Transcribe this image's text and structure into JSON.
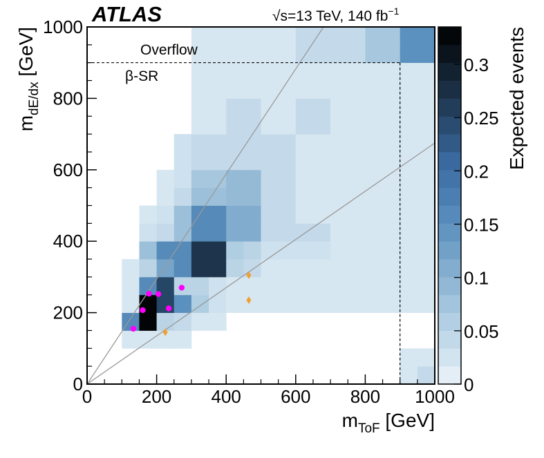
{
  "chart_data": {
    "type": "heatmap",
    "experiment_label": "ATLAS",
    "energy_label": "√s=13 TeV, 140 fb",
    "energy_label_exponent": "−1",
    "xlabel": "m",
    "xlabel_sub": "ToF",
    "xlabel_unit": " [GeV]",
    "ylabel": "m",
    "ylabel_sub": "dE/dx",
    "ylabel_unit": " [GeV]",
    "colorbar_label": "Expected events",
    "xlim": [
      0,
      1000
    ],
    "ylim": [
      0,
      1000
    ],
    "x_ticks": [
      0,
      200,
      400,
      600,
      800,
      1000
    ],
    "y_ticks": [
      0,
      200,
      400,
      600,
      800,
      1000
    ],
    "zlim": [
      0,
      0.335
    ],
    "colorbar_ticks": [
      0,
      0.05,
      0.1,
      0.15,
      0.2,
      0.25,
      0.3
    ],
    "bin_width": 50,
    "overflow_label": "Overflow",
    "region_label": "β-SR",
    "dashed_boundary": {
      "x": 900,
      "y": 900
    },
    "diagonal_lines": [
      {
        "x0": 0,
        "y0": 0,
        "x1": 680,
        "y1": 1000
      },
      {
        "x0": 0,
        "y0": 0,
        "x1": 1000,
        "y1": 675
      }
    ],
    "bins": [
      [
        100,
        100,
        0.02
      ],
      [
        150,
        100,
        0.02
      ],
      [
        200,
        100,
        0.02
      ],
      [
        250,
        100,
        0.02
      ],
      [
        100,
        150,
        0.16
      ],
      [
        150,
        150,
        0.33
      ],
      [
        200,
        150,
        0.05
      ],
      [
        250,
        150,
        0.04
      ],
      [
        300,
        150,
        0.02
      ],
      [
        350,
        150,
        0.02
      ],
      [
        100,
        200,
        0.02
      ],
      [
        150,
        200,
        0.33
      ],
      [
        200,
        200,
        0.25
      ],
      [
        250,
        200,
        0.15
      ],
      [
        300,
        200,
        0.06
      ],
      [
        350,
        200,
        0.03
      ],
      [
        400,
        200,
        0.02
      ],
      [
        450,
        200,
        0.02
      ],
      [
        500,
        200,
        0.02
      ],
      [
        550,
        200,
        0.02
      ],
      [
        600,
        200,
        0.02
      ],
      [
        650,
        200,
        0.02
      ],
      [
        700,
        200,
        0.02
      ],
      [
        750,
        200,
        0.02
      ],
      [
        800,
        200,
        0.02
      ],
      [
        850,
        200,
        0.02
      ],
      [
        900,
        200,
        0.02
      ],
      [
        950,
        200,
        0.02
      ],
      [
        100,
        250,
        0.02
      ],
      [
        150,
        250,
        0.16
      ],
      [
        200,
        250,
        0.25
      ],
      [
        250,
        250,
        0.05
      ],
      [
        300,
        250,
        0.05
      ],
      [
        350,
        250,
        0.03
      ],
      [
        400,
        250,
        0.02
      ],
      [
        450,
        250,
        0.02
      ],
      [
        500,
        250,
        0.02
      ],
      [
        550,
        250,
        0.02
      ],
      [
        600,
        250,
        0.02
      ],
      [
        650,
        250,
        0.02
      ],
      [
        700,
        250,
        0.02
      ],
      [
        750,
        250,
        0.02
      ],
      [
        800,
        250,
        0.02
      ],
      [
        850,
        250,
        0.02
      ],
      [
        900,
        250,
        0.02
      ],
      [
        950,
        250,
        0.02
      ],
      [
        100,
        300,
        0.02
      ],
      [
        150,
        300,
        0.05
      ],
      [
        200,
        300,
        0.12
      ],
      [
        250,
        300,
        0.16
      ],
      [
        300,
        300,
        0.27
      ],
      [
        350,
        300,
        0.27
      ],
      [
        400,
        300,
        0.05
      ],
      [
        450,
        300,
        0.04
      ],
      [
        500,
        300,
        0.02
      ],
      [
        550,
        300,
        0.02
      ],
      [
        600,
        300,
        0.02
      ],
      [
        650,
        300,
        0.02
      ],
      [
        700,
        300,
        0.02
      ],
      [
        750,
        300,
        0.02
      ],
      [
        800,
        300,
        0.02
      ],
      [
        850,
        300,
        0.02
      ],
      [
        900,
        300,
        0.02
      ],
      [
        950,
        300,
        0.02
      ],
      [
        150,
        350,
        0.08
      ],
      [
        200,
        350,
        0.16
      ],
      [
        250,
        350,
        0.16
      ],
      [
        300,
        350,
        0.27
      ],
      [
        350,
        350,
        0.27
      ],
      [
        400,
        350,
        0.06
      ],
      [
        450,
        350,
        0.05
      ],
      [
        500,
        350,
        0.03
      ],
      [
        550,
        350,
        0.03
      ],
      [
        600,
        350,
        0.03
      ],
      [
        650,
        350,
        0.03
      ],
      [
        700,
        350,
        0.02
      ],
      [
        750,
        350,
        0.02
      ],
      [
        800,
        350,
        0.02
      ],
      [
        850,
        350,
        0.02
      ],
      [
        900,
        350,
        0.02
      ],
      [
        950,
        350,
        0.02
      ],
      [
        150,
        400,
        0.03
      ],
      [
        200,
        400,
        0.04
      ],
      [
        250,
        400,
        0.08
      ],
      [
        300,
        400,
        0.16
      ],
      [
        350,
        400,
        0.16
      ],
      [
        400,
        400,
        0.11
      ],
      [
        450,
        400,
        0.11
      ],
      [
        500,
        400,
        0.04
      ],
      [
        550,
        400,
        0.04
      ],
      [
        600,
        400,
        0.04
      ],
      [
        650,
        400,
        0.04
      ],
      [
        700,
        400,
        0.02
      ],
      [
        750,
        400,
        0.02
      ],
      [
        800,
        400,
        0.02
      ],
      [
        850,
        400,
        0.02
      ],
      [
        900,
        400,
        0.02
      ],
      [
        950,
        400,
        0.02
      ],
      [
        150,
        450,
        0.02
      ],
      [
        200,
        450,
        0.03
      ],
      [
        250,
        450,
        0.08
      ],
      [
        300,
        450,
        0.16
      ],
      [
        350,
        450,
        0.16
      ],
      [
        400,
        450,
        0.11
      ],
      [
        450,
        450,
        0.11
      ],
      [
        500,
        450,
        0.04
      ],
      [
        550,
        450,
        0.04
      ],
      [
        600,
        450,
        0.02
      ],
      [
        650,
        450,
        0.02
      ],
      [
        700,
        450,
        0.02
      ],
      [
        750,
        450,
        0.02
      ],
      [
        800,
        450,
        0.02
      ],
      [
        850,
        450,
        0.02
      ],
      [
        900,
        450,
        0.02
      ],
      [
        950,
        450,
        0.02
      ],
      [
        200,
        500,
        0.02
      ],
      [
        250,
        500,
        0.04
      ],
      [
        300,
        500,
        0.08
      ],
      [
        350,
        500,
        0.08
      ],
      [
        400,
        500,
        0.09
      ],
      [
        450,
        500,
        0.09
      ],
      [
        500,
        500,
        0.04
      ],
      [
        550,
        500,
        0.04
      ],
      [
        600,
        500,
        0.02
      ],
      [
        650,
        500,
        0.02
      ],
      [
        700,
        500,
        0.02
      ],
      [
        750,
        500,
        0.02
      ],
      [
        800,
        500,
        0.02
      ],
      [
        850,
        500,
        0.02
      ],
      [
        900,
        500,
        0.02
      ],
      [
        950,
        500,
        0.02
      ],
      [
        200,
        550,
        0.02
      ],
      [
        250,
        550,
        0.03
      ],
      [
        300,
        550,
        0.07
      ],
      [
        350,
        550,
        0.07
      ],
      [
        400,
        550,
        0.09
      ],
      [
        450,
        550,
        0.09
      ],
      [
        500,
        550,
        0.04
      ],
      [
        550,
        550,
        0.04
      ],
      [
        600,
        550,
        0.02
      ],
      [
        650,
        550,
        0.02
      ],
      [
        700,
        550,
        0.02
      ],
      [
        750,
        550,
        0.02
      ],
      [
        800,
        550,
        0.02
      ],
      [
        850,
        550,
        0.02
      ],
      [
        900,
        550,
        0.02
      ],
      [
        950,
        550,
        0.02
      ],
      [
        250,
        600,
        0.03
      ],
      [
        300,
        600,
        0.04
      ],
      [
        350,
        600,
        0.04
      ],
      [
        400,
        600,
        0.04
      ],
      [
        450,
        600,
        0.04
      ],
      [
        500,
        600,
        0.04
      ],
      [
        550,
        600,
        0.04
      ],
      [
        600,
        600,
        0.02
      ],
      [
        650,
        600,
        0.02
      ],
      [
        700,
        600,
        0.02
      ],
      [
        750,
        600,
        0.02
      ],
      [
        800,
        600,
        0.02
      ],
      [
        850,
        600,
        0.02
      ],
      [
        900,
        600,
        0.02
      ],
      [
        950,
        600,
        0.02
      ],
      [
        250,
        650,
        0.03
      ],
      [
        300,
        650,
        0.04
      ],
      [
        350,
        650,
        0.04
      ],
      [
        400,
        650,
        0.04
      ],
      [
        450,
        650,
        0.04
      ],
      [
        500,
        650,
        0.04
      ],
      [
        550,
        650,
        0.04
      ],
      [
        600,
        650,
        0.02
      ],
      [
        650,
        650,
        0.02
      ],
      [
        700,
        650,
        0.02
      ],
      [
        750,
        650,
        0.02
      ],
      [
        800,
        650,
        0.02
      ],
      [
        850,
        650,
        0.02
      ],
      [
        900,
        650,
        0.02
      ],
      [
        950,
        650,
        0.02
      ],
      [
        300,
        700,
        0.02
      ],
      [
        350,
        700,
        0.02
      ],
      [
        400,
        700,
        0.04
      ],
      [
        450,
        700,
        0.04
      ],
      [
        500,
        700,
        0.02
      ],
      [
        550,
        700,
        0.02
      ],
      [
        600,
        700,
        0.04
      ],
      [
        650,
        700,
        0.04
      ],
      [
        700,
        700,
        0.02
      ],
      [
        750,
        700,
        0.02
      ],
      [
        800,
        700,
        0.02
      ],
      [
        850,
        700,
        0.02
      ],
      [
        900,
        700,
        0.02
      ],
      [
        950,
        700,
        0.02
      ],
      [
        300,
        750,
        0.02
      ],
      [
        350,
        750,
        0.02
      ],
      [
        400,
        750,
        0.04
      ],
      [
        450,
        750,
        0.04
      ],
      [
        500,
        750,
        0.02
      ],
      [
        550,
        750,
        0.02
      ],
      [
        600,
        750,
        0.04
      ],
      [
        650,
        750,
        0.04
      ],
      [
        700,
        750,
        0.02
      ],
      [
        750,
        750,
        0.02
      ],
      [
        800,
        750,
        0.02
      ],
      [
        850,
        750,
        0.02
      ],
      [
        900,
        750,
        0.02
      ],
      [
        950,
        750,
        0.02
      ],
      [
        300,
        800,
        0.02
      ],
      [
        350,
        800,
        0.02
      ],
      [
        400,
        800,
        0.02
      ],
      [
        450,
        800,
        0.02
      ],
      [
        500,
        800,
        0.02
      ],
      [
        550,
        800,
        0.02
      ],
      [
        600,
        800,
        0.02
      ],
      [
        650,
        800,
        0.02
      ],
      [
        700,
        800,
        0.02
      ],
      [
        750,
        800,
        0.02
      ],
      [
        800,
        800,
        0.02
      ],
      [
        850,
        800,
        0.02
      ],
      [
        900,
        800,
        0.02
      ],
      [
        950,
        800,
        0.02
      ],
      [
        300,
        850,
        0.02
      ],
      [
        350,
        850,
        0.02
      ],
      [
        400,
        850,
        0.02
      ],
      [
        450,
        850,
        0.02
      ],
      [
        500,
        850,
        0.02
      ],
      [
        550,
        850,
        0.02
      ],
      [
        600,
        850,
        0.02
      ],
      [
        650,
        850,
        0.02
      ],
      [
        700,
        850,
        0.02
      ],
      [
        750,
        850,
        0.02
      ],
      [
        800,
        850,
        0.02
      ],
      [
        850,
        850,
        0.02
      ],
      [
        900,
        850,
        0.02
      ],
      [
        950,
        850,
        0.02
      ],
      [
        300,
        900,
        0.02
      ],
      [
        350,
        900,
        0.02
      ],
      [
        400,
        900,
        0.02
      ],
      [
        450,
        900,
        0.02
      ],
      [
        500,
        900,
        0.02
      ],
      [
        550,
        900,
        0.02
      ],
      [
        600,
        900,
        0.04
      ],
      [
        650,
        900,
        0.04
      ],
      [
        700,
        900,
        0.04
      ],
      [
        750,
        900,
        0.04
      ],
      [
        800,
        900,
        0.07
      ],
      [
        850,
        900,
        0.07
      ],
      [
        900,
        900,
        0.15
      ],
      [
        950,
        900,
        0.15
      ],
      [
        300,
        950,
        0.02
      ],
      [
        350,
        950,
        0.02
      ],
      [
        400,
        950,
        0.02
      ],
      [
        450,
        950,
        0.02
      ],
      [
        500,
        950,
        0.02
      ],
      [
        550,
        950,
        0.02
      ],
      [
        600,
        950,
        0.04
      ],
      [
        650,
        950,
        0.04
      ],
      [
        700,
        950,
        0.04
      ],
      [
        750,
        950,
        0.04
      ],
      [
        800,
        950,
        0.07
      ],
      [
        850,
        950,
        0.07
      ],
      [
        900,
        950,
        0.15
      ],
      [
        950,
        950,
        0.15
      ],
      [
        900,
        0,
        0.02
      ],
      [
        950,
        0,
        0.04
      ],
      [
        900,
        50,
        0.02
      ],
      [
        950,
        50,
        0.02
      ]
    ],
    "series": [
      {
        "marker": "circle",
        "color": "#ff00ff",
        "points": [
          [
            133,
            155
          ],
          [
            160,
            207
          ],
          [
            178,
            253
          ],
          [
            205,
            252
          ],
          [
            235,
            212
          ],
          [
            272,
            270
          ]
        ]
      },
      {
        "marker": "diamond",
        "color": "#f0a030",
        "points": [
          [
            225,
            145
          ],
          [
            465,
            235
          ],
          [
            465,
            305
          ]
        ]
      }
    ]
  }
}
